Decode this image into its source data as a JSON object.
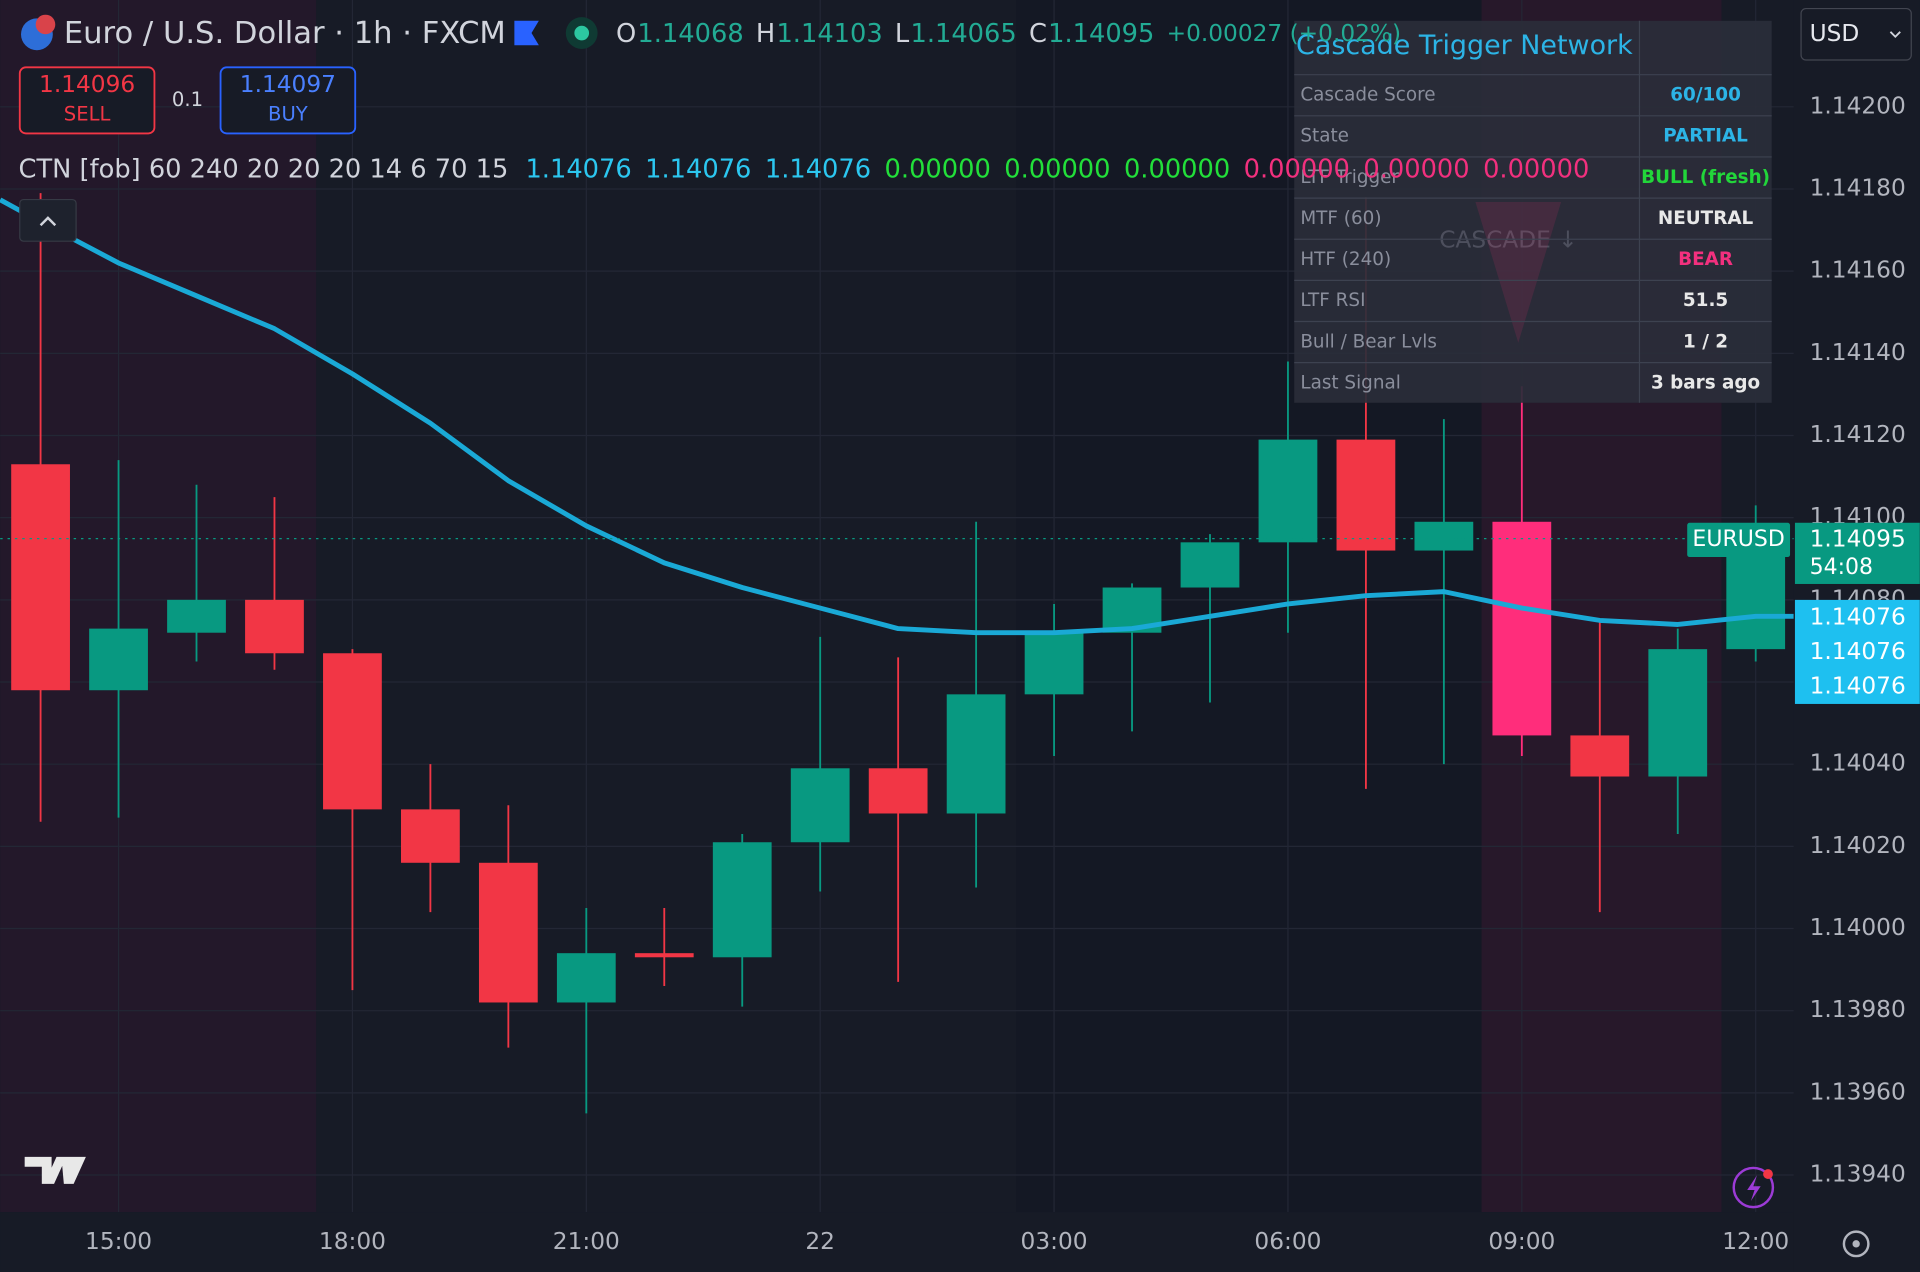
{
  "header": {
    "symbol": "Euro / U.S. Dollar · 1h · FXCM",
    "ohlc": [
      {
        "key": "O",
        "value": "1.14068"
      },
      {
        "key": "H",
        "value": "1.14103"
      },
      {
        "key": "L",
        "value": "1.14065"
      },
      {
        "key": "C",
        "value": "1.14095"
      }
    ],
    "change": "+0.00027 (+0.02%)",
    "currency": "USD"
  },
  "order_panel": {
    "sell_price": "1.14096",
    "sell": "SELL",
    "quantity": "0.1",
    "buy_price": "1.14097",
    "buy": "BUY"
  },
  "indicator": {
    "name": "CTN [fob] 60 240 20 20 20 14 6 70 15",
    "values": [
      {
        "text": "1.14076",
        "color": "#2cc7f0"
      },
      {
        "text": "1.14076",
        "color": "#2cc7f0"
      },
      {
        "text": "1.14076",
        "color": "#2cc7f0"
      },
      {
        "text": "0.00000",
        "color": "#22e03a"
      },
      {
        "text": "0.00000",
        "color": "#22e03a"
      },
      {
        "text": "0.00000",
        "color": "#22e03a"
      },
      {
        "text": "0.00000",
        "color": "#f2307e"
      },
      {
        "text": "0.00000",
        "color": "#f2307e"
      },
      {
        "text": "0.00000",
        "color": "#f2307e"
      }
    ]
  },
  "table": {
    "title": "Cascade Trigger Network",
    "rows": [
      {
        "label": "Cascade Score",
        "value": "60/100",
        "color": "#2cb4e6"
      },
      {
        "label": "State",
        "value": "PARTIAL",
        "color": "#2cb4e6"
      },
      {
        "label": "LTF Trigger",
        "value": "BULL (fresh)",
        "color": "#22d63a"
      },
      {
        "label": "MTF (60)",
        "value": "NEUTRAL",
        "color": "#e8e8e8"
      },
      {
        "label": "HTF (240)",
        "value": "BEAR",
        "color": "#f2307e"
      },
      {
        "label": "LTF RSI",
        "value": "51.5",
        "color": "#e8e8e8"
      },
      {
        "label": "Bull / Bear Lvls",
        "value": "1 / 2",
        "color": "#e8e8e8"
      },
      {
        "label": "Last Signal",
        "value": "3 bars ago",
        "color": "#e8e8e8"
      }
    ],
    "watermark": "CASCADE ↓"
  },
  "price_labels": {
    "symbol": "EURUSD",
    "last": "1.14095",
    "countdown": "54:08",
    "indicator": [
      "1.14076",
      "1.14076",
      "1.14076"
    ]
  },
  "chart_data": {
    "type": "candlestick",
    "categories": [
      null,
      "15:00",
      null,
      null,
      "18:00",
      null,
      null,
      "21:00",
      null,
      null,
      "22",
      null,
      null,
      "03:00",
      null,
      null,
      "06:00",
      null,
      null,
      "09:00",
      null,
      null,
      "12:00"
    ],
    "open": [
      1.14113,
      1.14058,
      1.14072,
      1.1408,
      1.14067,
      1.14029,
      1.14016,
      1.13982,
      1.13994,
      1.13993,
      1.14021,
      1.14039,
      1.14028,
      1.14057,
      1.14072,
      1.14083,
      1.14094,
      1.14119,
      1.14092,
      1.14099,
      1.14047,
      1.14037,
      1.14068
    ],
    "high": [
      1.14179,
      1.14114,
      1.14108,
      1.14105,
      1.14068,
      1.1404,
      1.1403,
      1.14005,
      1.14005,
      1.14023,
      1.14071,
      1.14066,
      1.14099,
      1.14079,
      1.14084,
      1.14096,
      1.14138,
      1.14178,
      1.14124,
      1.14132,
      1.14075,
      1.14073,
      1.14103
    ],
    "low": [
      1.14026,
      1.14027,
      1.14065,
      1.14063,
      1.13985,
      1.14004,
      1.13971,
      1.13955,
      1.13986,
      1.13981,
      1.14009,
      1.13987,
      1.1401,
      1.14042,
      1.14048,
      1.14055,
      1.14072,
      1.14034,
      1.1404,
      1.14042,
      1.14004,
      1.14023,
      1.14065
    ],
    "close": [
      1.14058,
      1.14073,
      1.1408,
      1.14067,
      1.14029,
      1.14016,
      1.13982,
      1.13994,
      1.13993,
      1.14021,
      1.14039,
      1.14028,
      1.14057,
      1.14072,
      1.14083,
      1.14094,
      1.14119,
      1.14092,
      1.14099,
      1.14047,
      1.14037,
      1.14068,
      1.14095
    ],
    "up_color": "#089981",
    "down_color": "#f23645",
    "signal_candle": {
      "index": 19,
      "color": "#ff2d7b"
    },
    "overlay": {
      "color": "#1aa9d6",
      "values": [
        1.14172,
        1.14162,
        1.14154,
        1.14146,
        1.14135,
        1.14123,
        1.14109,
        1.14098,
        1.14089,
        1.14083,
        1.14078,
        1.14073,
        1.14072,
        1.14072,
        1.14073,
        1.14076,
        1.14079,
        1.14081,
        1.14082,
        1.14078,
        1.14075,
        1.14074,
        1.14076
      ]
    },
    "ylim": [
      1.13931,
      1.14226
    ],
    "yticks": [
      {
        "value": 1.1394,
        "label": "1.13940"
      },
      {
        "value": 1.1396,
        "label": "1.13960"
      },
      {
        "value": 1.1398,
        "label": "1.13980"
      },
      {
        "value": 1.14,
        "label": "1.14000"
      },
      {
        "value": 1.1402,
        "label": "1.14020"
      },
      {
        "value": 1.1404,
        "label": "1.14040"
      },
      {
        "value": 1.1406,
        "label": "1.14060"
      },
      {
        "value": 1.1408,
        "label": "1.14080"
      },
      {
        "value": 1.141,
        "label": "1.14100"
      },
      {
        "value": 1.1412,
        "label": "1.14120"
      },
      {
        "value": 1.1414,
        "label": "1.14140"
      },
      {
        "value": 1.1416,
        "label": "1.14160"
      },
      {
        "value": 1.1418,
        "label": "1.14180"
      },
      {
        "value": 1.142,
        "label": "1.14200"
      }
    ],
    "grid": true
  }
}
